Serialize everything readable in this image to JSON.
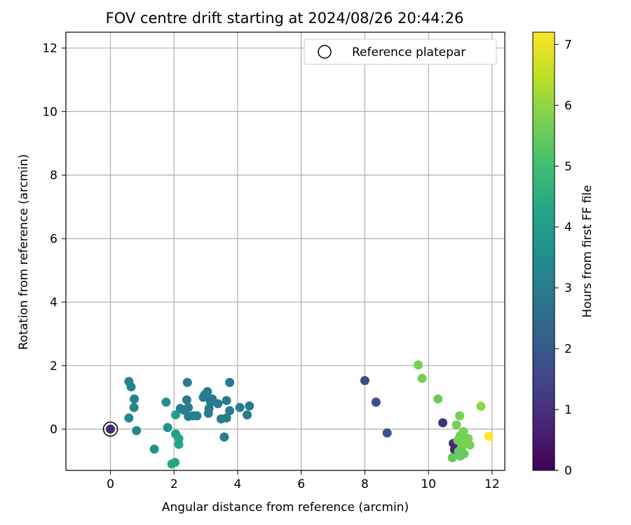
{
  "chart_data": {
    "type": "scatter",
    "title": "FOV centre drift starting at 2024/08/26 20:44:26",
    "xlabel": "Angular distance from reference (arcmin)",
    "ylabel": "Rotation from reference (arcmin)",
    "xlim": [
      -1.4,
      12.4
    ],
    "ylim": [
      -1.3,
      12.5
    ],
    "xticks": [
      0,
      2,
      4,
      6,
      8,
      10,
      12
    ],
    "yticks": [
      0,
      2,
      4,
      6,
      8,
      10,
      12
    ],
    "grid": true,
    "legend": {
      "position": "top-right",
      "entries": [
        "Reference platepar"
      ]
    },
    "colorbar": {
      "label": "Hours from first FF file",
      "range": [
        0,
        7.2
      ],
      "ticks": [
        0,
        1,
        2,
        3,
        4,
        5,
        6,
        7
      ],
      "colormap": "viridis"
    },
    "reference_point": {
      "x": 0,
      "y": 0
    },
    "points": [
      {
        "x": 0.0,
        "y": 0.0,
        "t": 0.85
      },
      {
        "x": 0.58,
        "y": 1.5,
        "t": 3.2
      },
      {
        "x": 0.65,
        "y": 1.33,
        "t": 3.2
      },
      {
        "x": 0.75,
        "y": 0.95,
        "t": 3.2
      },
      {
        "x": 0.74,
        "y": 0.68,
        "t": 3.3
      },
      {
        "x": 0.58,
        "y": 0.35,
        "t": 3.3
      },
      {
        "x": 0.82,
        "y": -0.05,
        "t": 3.3
      },
      {
        "x": 1.75,
        "y": 0.85,
        "t": 3.6
      },
      {
        "x": 1.8,
        "y": 0.05,
        "t": 3.6
      },
      {
        "x": 1.38,
        "y": -0.63,
        "t": 3.6
      },
      {
        "x": 2.05,
        "y": 0.45,
        "t": 4.1
      },
      {
        "x": 2.05,
        "y": -0.15,
        "t": 4.1
      },
      {
        "x": 2.15,
        "y": -0.3,
        "t": 4.2
      },
      {
        "x": 2.15,
        "y": -0.48,
        "t": 4.2
      },
      {
        "x": 1.93,
        "y": -1.1,
        "t": 4.3
      },
      {
        "x": 2.03,
        "y": -1.05,
        "t": 4.3
      },
      {
        "x": 2.2,
        "y": 0.65,
        "t": 3.0
      },
      {
        "x": 2.3,
        "y": 0.6,
        "t": 3.0
      },
      {
        "x": 2.42,
        "y": 1.47,
        "t": 3.0
      },
      {
        "x": 2.4,
        "y": 0.92,
        "t": 3.0
      },
      {
        "x": 2.45,
        "y": 0.68,
        "t": 3.0
      },
      {
        "x": 2.45,
        "y": 0.4,
        "t": 3.0
      },
      {
        "x": 2.6,
        "y": 0.42,
        "t": 3.0
      },
      {
        "x": 2.72,
        "y": 0.42,
        "t": 3.0
      },
      {
        "x": 2.92,
        "y": 1.0,
        "t": 3.0
      },
      {
        "x": 2.96,
        "y": 1.08,
        "t": 3.0
      },
      {
        "x": 3.05,
        "y": 1.18,
        "t": 3.0
      },
      {
        "x": 3.08,
        "y": 0.5,
        "t": 3.0
      },
      {
        "x": 3.1,
        "y": 0.65,
        "t": 3.0
      },
      {
        "x": 3.15,
        "y": 0.85,
        "t": 3.0
      },
      {
        "x": 3.2,
        "y": 0.95,
        "t": 3.0
      },
      {
        "x": 3.38,
        "y": 0.8,
        "t": 3.0
      },
      {
        "x": 3.48,
        "y": 0.32,
        "t": 3.0
      },
      {
        "x": 3.58,
        "y": -0.25,
        "t": 3.0
      },
      {
        "x": 3.65,
        "y": 0.9,
        "t": 3.0
      },
      {
        "x": 3.65,
        "y": 0.35,
        "t": 3.0
      },
      {
        "x": 3.75,
        "y": 1.47,
        "t": 3.0
      },
      {
        "x": 3.75,
        "y": 0.58,
        "t": 3.0
      },
      {
        "x": 4.07,
        "y": 0.68,
        "t": 3.0
      },
      {
        "x": 4.3,
        "y": 0.45,
        "t": 3.0
      },
      {
        "x": 4.37,
        "y": 0.73,
        "t": 3.0
      },
      {
        "x": 8.0,
        "y": 1.53,
        "t": 1.7
      },
      {
        "x": 8.35,
        "y": 0.85,
        "t": 1.7
      },
      {
        "x": 8.7,
        "y": -0.12,
        "t": 1.8
      },
      {
        "x": 10.45,
        "y": 0.2,
        "t": 1.0
      },
      {
        "x": 10.78,
        "y": -0.45,
        "t": 0.8
      },
      {
        "x": 10.82,
        "y": -0.65,
        "t": 0.8
      },
      {
        "x": 9.68,
        "y": 2.02,
        "t": 5.7
      },
      {
        "x": 9.8,
        "y": 1.6,
        "t": 5.7
      },
      {
        "x": 10.3,
        "y": 0.95,
        "t": 5.6
      },
      {
        "x": 10.98,
        "y": 0.42,
        "t": 5.7
      },
      {
        "x": 10.88,
        "y": 0.13,
        "t": 5.7
      },
      {
        "x": 11.1,
        "y": -0.08,
        "t": 5.7
      },
      {
        "x": 11.0,
        "y": -0.2,
        "t": 5.7
      },
      {
        "x": 11.25,
        "y": -0.3,
        "t": 5.7
      },
      {
        "x": 10.92,
        "y": -0.35,
        "t": 5.7
      },
      {
        "x": 11.12,
        "y": -0.4,
        "t": 5.7
      },
      {
        "x": 11.3,
        "y": -0.5,
        "t": 5.7
      },
      {
        "x": 11.05,
        "y": -0.55,
        "t": 5.7
      },
      {
        "x": 10.95,
        "y": -0.7,
        "t": 5.5
      },
      {
        "x": 11.12,
        "y": -0.78,
        "t": 5.5
      },
      {
        "x": 11.0,
        "y": -0.85,
        "t": 5.5
      },
      {
        "x": 10.75,
        "y": -0.9,
        "t": 5.5
      },
      {
        "x": 11.65,
        "y": 0.72,
        "t": 6.0
      },
      {
        "x": 11.9,
        "y": -0.23,
        "t": 7.2
      }
    ]
  }
}
